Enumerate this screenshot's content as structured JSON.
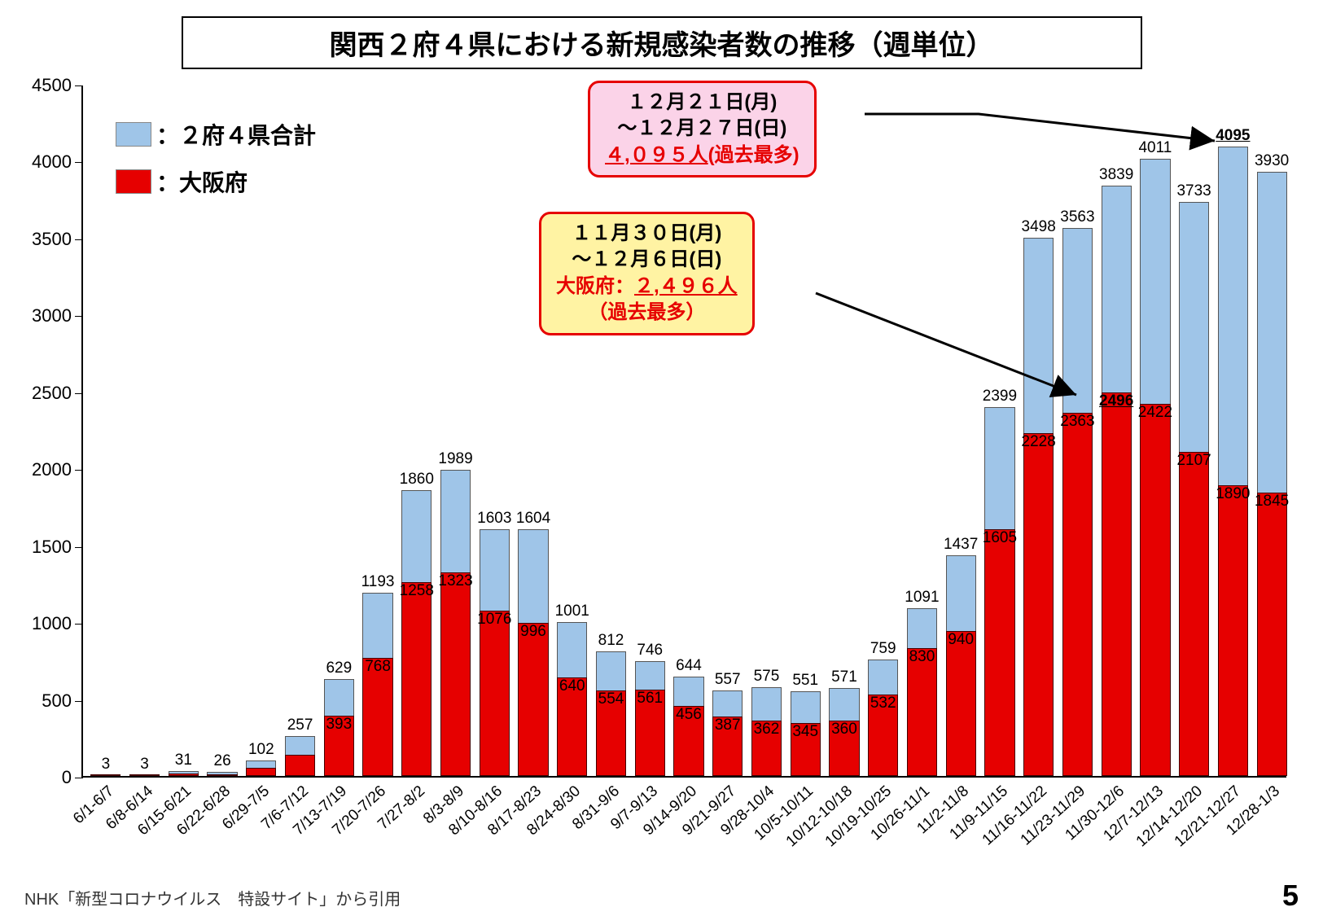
{
  "title": "関西２府４県における新規感染者数の推移（週単位）",
  "legend": {
    "total": {
      "label": "：２府４県合計",
      "color": "#9fc5e8"
    },
    "osaka": {
      "label": "：大阪府",
      "color": "#e60000"
    }
  },
  "chart": {
    "type": "bar",
    "ylim": [
      0,
      4500
    ],
    "ytick_step": 500,
    "ytick_labels": [
      "0",
      "500",
      "1000",
      "1500",
      "2000",
      "2500",
      "3000",
      "3500",
      "4000",
      "4500"
    ],
    "bar_fill_total": "#9fc5e8",
    "bar_fill_osaka": "#e60000",
    "background": "#ffffff",
    "categories": [
      "6/1-6/7",
      "6/8-6/14",
      "6/15-6/21",
      "6/22-6/28",
      "6/29-7/5",
      "7/6-7/12",
      "7/13-7/19",
      "7/20-7/26",
      "7/27-8/2",
      "8/3-8/9",
      "8/10-8/16",
      "8/17-8/23",
      "8/24-8/30",
      "8/31-9/6",
      "9/7-9/13",
      "9/14-9/20",
      "9/21-9/27",
      "9/28-10/4",
      "10/5-10/11",
      "10/12-10/18",
      "10/19-10/25",
      "10/26-11/1",
      "11/2-11/8",
      "11/9-11/15",
      "11/16-11/22",
      "11/23-11/29",
      "11/30-12/6",
      "12/7-12/13",
      "12/14-12/20",
      "12/21-12/27",
      "12/28-1/3"
    ],
    "values_total": [
      3,
      3,
      31,
      26,
      102,
      257,
      629,
      1193,
      1860,
      1989,
      1603,
      1604,
      1001,
      812,
      746,
      644,
      557,
      575,
      551,
      571,
      759,
      1091,
      1437,
      2399,
      3498,
      3563,
      3839,
      4011,
      3733,
      4095,
      3930
    ],
    "values_osaka": [
      1,
      1,
      15,
      12,
      55,
      140,
      393,
      768,
      1258,
      1323,
      1076,
      996,
      640,
      554,
      561,
      456,
      387,
      362,
      345,
      360,
      532,
      830,
      940,
      1605,
      2228,
      2363,
      2496,
      2422,
      2107,
      1890,
      1845
    ],
    "osaka_labels": [
      "",
      "",
      "",
      "",
      "",
      "",
      "393",
      "768",
      "1258",
      "1323",
      "1076",
      "996",
      "640",
      "554",
      "561",
      "456",
      "387",
      "362",
      "345",
      "360",
      "532",
      "830",
      "940",
      "1605",
      "2228",
      "2363",
      "2496",
      "2422",
      "2107",
      "1890",
      "1845"
    ],
    "total_label_bold_underline_index": 29,
    "osaka_label_bold_underline_index": 26
  },
  "callouts": {
    "pink": {
      "bg": "#fbd3e8",
      "border": "#e60000",
      "line1": "１２月２１日(月)",
      "line2": "～１２月２７日(日)",
      "line3_a": "４,０９５人",
      "line3_b": "(過去最多)"
    },
    "yellow": {
      "bg": "#fff3a3",
      "border": "#e60000",
      "line1": "１１月３０日(月)",
      "line2": "～１２月６日(日)",
      "line3_a": "大阪府：",
      "line3_b": "２,４９６人",
      "line4": "（過去最多）"
    }
  },
  "footer": "NHK「新型コロナウイルス　特設サイト」から引用",
  "page": "5"
}
